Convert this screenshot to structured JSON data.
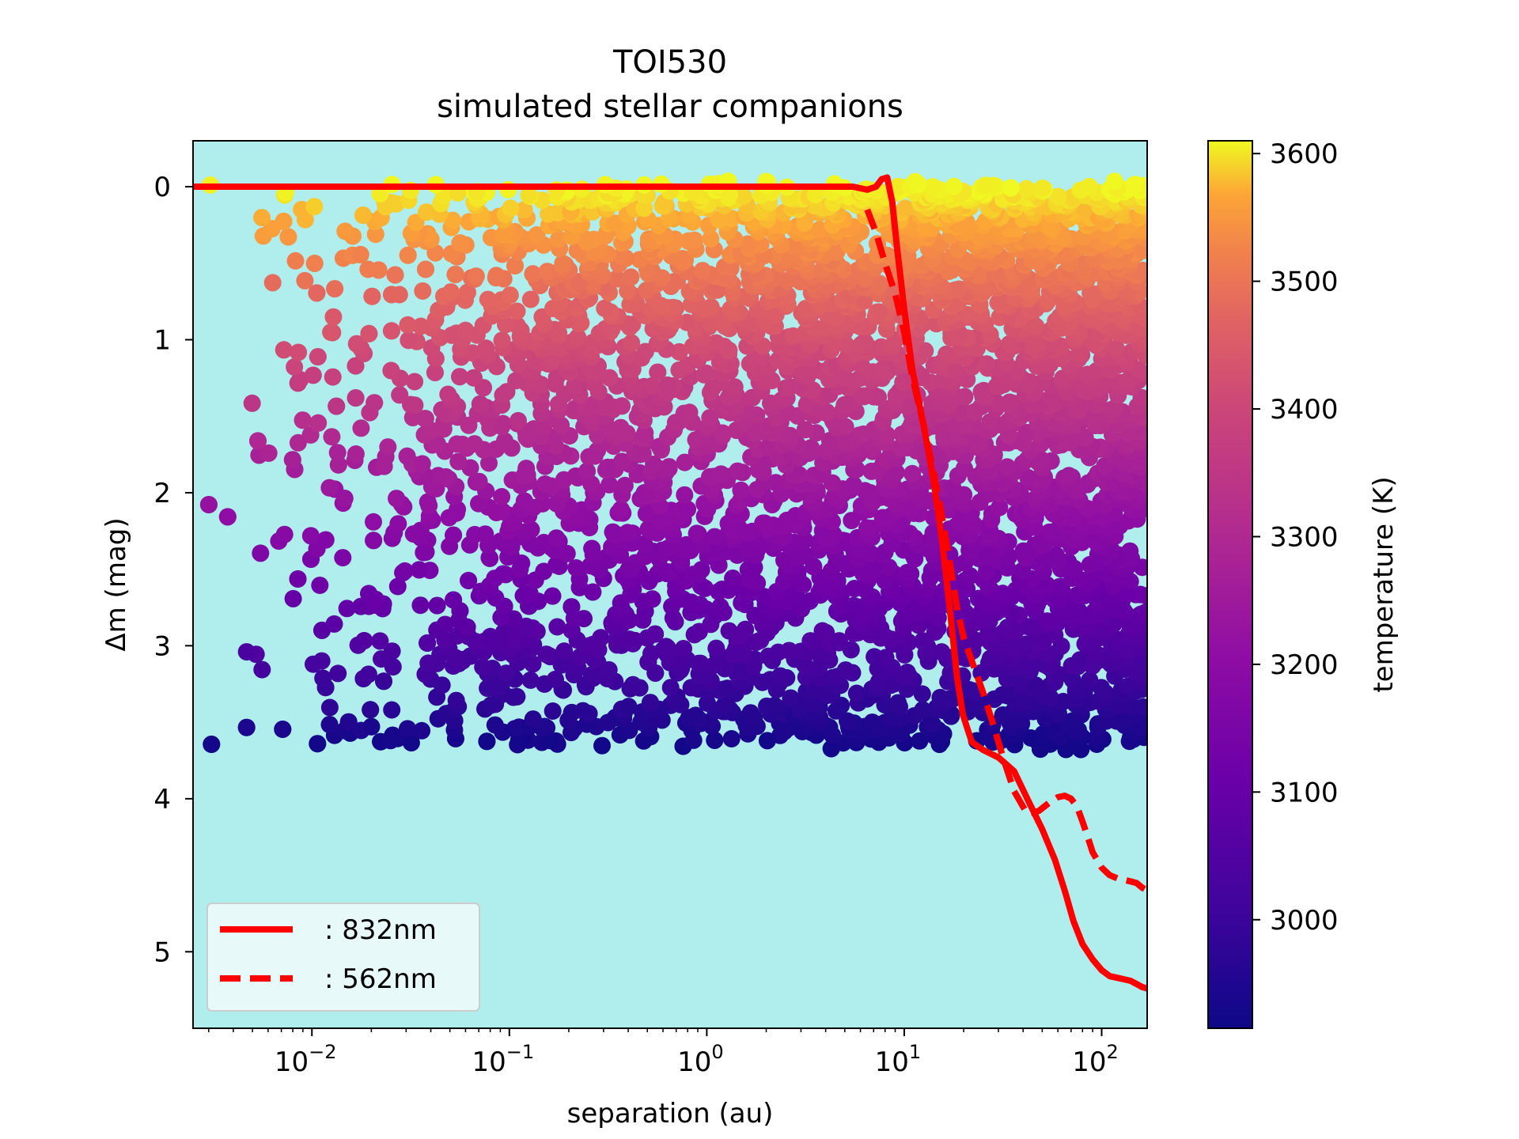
{
  "chart_data": {
    "type": "scatter",
    "title": "TOI530",
    "subtitle": "simulated stellar companions",
    "xlabel": "separation (au)",
    "ylabel": "Δm (mag)",
    "xscale": "log",
    "xlim": [
      0.0025,
      170
    ],
    "ylim": [
      5.5,
      -0.3
    ],
    "y_inverted": true,
    "x_ticks": [
      {
        "value": 0.01,
        "base": "10",
        "exp": "−2"
      },
      {
        "value": 0.1,
        "base": "10",
        "exp": "−1"
      },
      {
        "value": 1,
        "base": "10",
        "exp": "0"
      },
      {
        "value": 10,
        "base": "10",
        "exp": "1"
      },
      {
        "value": 100,
        "base": "10",
        "exp": "2"
      }
    ],
    "y_ticks": [
      0,
      1,
      2,
      3,
      4,
      5
    ],
    "background_color": "#b0eded",
    "colorbar": {
      "label": "temperature (K)",
      "range": [
        2915,
        3610
      ],
      "ticks": [
        3000,
        3100,
        3200,
        3300,
        3400,
        3500,
        3600
      ],
      "colormap": "plasma"
    },
    "scatter_description": "simulated companions; colour = temperature, Δm from 0 (hot, 3600 K) to ~3.65 (cool, 2920 K)",
    "series": [
      {
        "name": ": 832nm",
        "style": "solid",
        "color": "#ff0000",
        "x": [
          0.0025,
          0.1,
          1,
          5.5,
          6.5,
          7.2,
          7.7,
          8.2,
          8.7,
          9.2,
          10,
          11,
          12.5,
          14,
          15.5,
          17,
          18.5,
          19.8,
          21,
          22,
          25,
          30,
          36,
          42,
          50,
          58,
          65,
          72,
          80,
          90,
          100,
          110,
          120,
          130,
          140,
          150,
          160,
          170
        ],
        "y": [
          0,
          0,
          0,
          0,
          0.02,
          0.0,
          -0.05,
          -0.06,
          0.1,
          0.4,
          0.8,
          1.2,
          1.55,
          1.9,
          2.3,
          2.75,
          3.2,
          3.45,
          3.55,
          3.63,
          3.68,
          3.73,
          3.82,
          4.0,
          4.2,
          4.4,
          4.6,
          4.8,
          4.95,
          5.05,
          5.12,
          5.16,
          5.17,
          5.18,
          5.19,
          5.21,
          5.23,
          5.24
        ]
      },
      {
        "name": ": 562nm",
        "style": "dashed",
        "color": "#ff0000",
        "x": [
          6.5,
          7.2,
          8,
          9,
          10,
          11,
          12.5,
          14,
          15.5,
          17,
          18.5,
          20,
          22,
          25,
          28,
          32,
          36,
          42,
          48,
          55,
          60,
          65,
          70,
          75,
          80,
          85,
          90,
          100,
          110,
          120,
          130,
          140,
          150,
          160,
          170
        ],
        "y": [
          0.15,
          0.3,
          0.5,
          0.7,
          0.95,
          1.25,
          1.55,
          1.85,
          2.15,
          2.45,
          2.75,
          2.95,
          3.1,
          3.3,
          3.5,
          3.75,
          3.95,
          4.1,
          4.08,
          4.02,
          3.99,
          3.98,
          4.0,
          4.05,
          4.15,
          4.25,
          4.35,
          4.45,
          4.5,
          4.52,
          4.53,
          4.54,
          4.55,
          4.58,
          4.6
        ]
      }
    ],
    "legend": {
      "position": "bottom-left",
      "entries": [
        ": 832nm",
        ": 562nm"
      ]
    }
  }
}
